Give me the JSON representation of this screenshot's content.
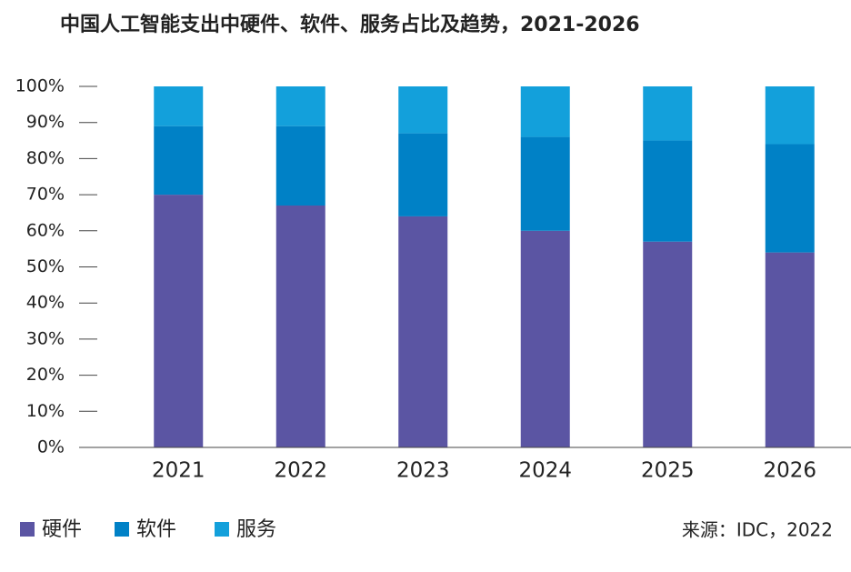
{
  "chart_data": {
    "type": "stacked_bar",
    "title": "中国人工智能支出中硬件、软件、服务占比及趋势，2021-2026",
    "categories": [
      "2021",
      "2022",
      "2023",
      "2024",
      "2025",
      "2026"
    ],
    "series": [
      {
        "name": "硬件",
        "color": "#5b55a3",
        "values": [
          70,
          67,
          64,
          60,
          57,
          54
        ]
      },
      {
        "name": "软件",
        "color": "#0081c6",
        "values": [
          19,
          22,
          23,
          26,
          28,
          30
        ]
      },
      {
        "name": "服务",
        "color": "#13a0db",
        "values": [
          11,
          11,
          13,
          14,
          15,
          16
        ]
      }
    ],
    "ylim": [
      0,
      100
    ],
    "yticks": [
      {
        "value": 0,
        "label": "0%"
      },
      {
        "value": 10,
        "label": "10%"
      },
      {
        "value": 20,
        "label": "20%"
      },
      {
        "value": 30,
        "label": "30%"
      },
      {
        "value": 40,
        "label": "40%"
      },
      {
        "value": 50,
        "label": "50%"
      },
      {
        "value": 60,
        "label": "60%"
      },
      {
        "value": 70,
        "label": "70%"
      },
      {
        "value": 80,
        "label": "80%"
      },
      {
        "value": 90,
        "label": "90%"
      },
      {
        "value": 100,
        "label": "100%"
      }
    ],
    "legend": "bottom-left",
    "source": "来源：IDC，2022"
  }
}
